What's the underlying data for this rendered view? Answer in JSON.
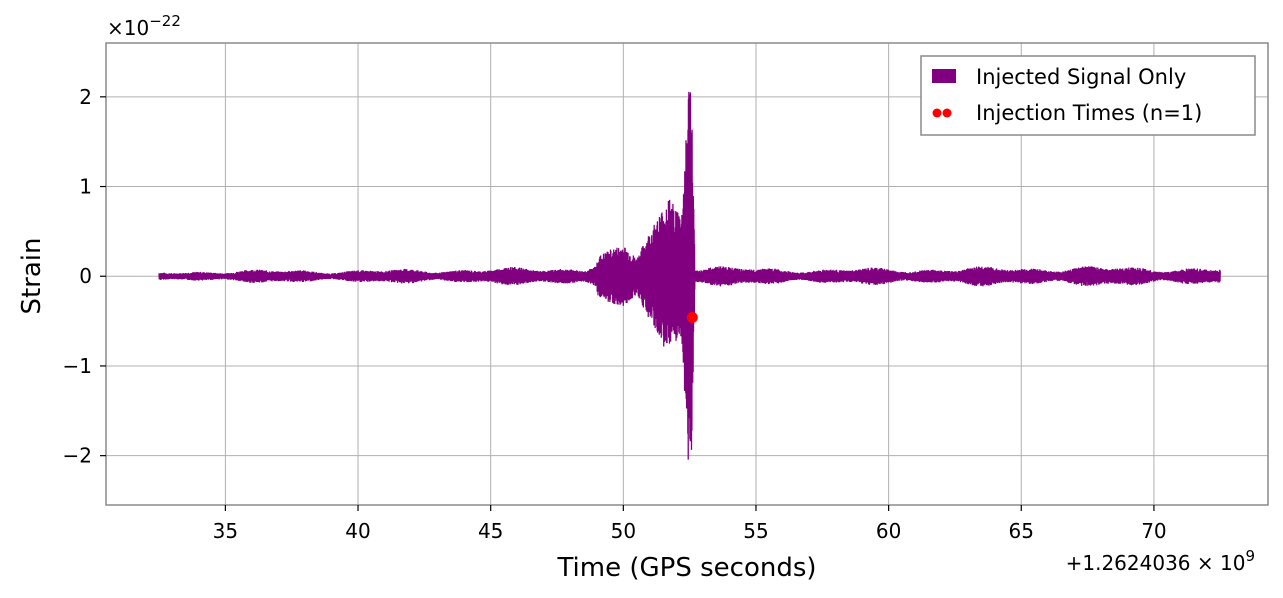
{
  "chart_data": {
    "type": "line",
    "xlabel": "Time (GPS seconds)",
    "ylabel": "Strain",
    "x_offset_label": "+1.2624036 × 10",
    "x_offset_exponent": "9",
    "y_scale_label": "×10",
    "y_scale_exponent": "−22",
    "xlim": [
      30.5,
      74.3
    ],
    "ylim": [
      -2.55,
      2.6
    ],
    "xticks": [
      35,
      40,
      45,
      50,
      55,
      60,
      65,
      70
    ],
    "xtick_labels": [
      "35",
      "40",
      "45",
      "50",
      "55",
      "60",
      "65",
      "70"
    ],
    "yticks": [
      -2,
      -1,
      0,
      1,
      2
    ],
    "ytick_labels": [
      "−2",
      "−1",
      "0",
      "1",
      "2"
    ],
    "grid": true,
    "legend_position": "top-right",
    "series": [
      {
        "name": "Injected Signal Only",
        "color": "#800080",
        "kind": "line",
        "x_range": [
          32.5,
          72.5
        ],
        "envelope_points": [
          {
            "x": 32.5,
            "amp": 0.05
          },
          {
            "x": 35,
            "amp": 0.08
          },
          {
            "x": 40,
            "amp": 0.08
          },
          {
            "x": 45,
            "amp": 0.1
          },
          {
            "x": 48.5,
            "amp": 0.12
          },
          {
            "x": 49.5,
            "amp": 0.3
          },
          {
            "x": 50.0,
            "amp": 0.35
          },
          {
            "x": 50.5,
            "amp": 0.2
          },
          {
            "x": 51.0,
            "amp": 0.5
          },
          {
            "x": 51.7,
            "amp": 0.88
          },
          {
            "x": 52.2,
            "amp": 0.7
          },
          {
            "x": 52.5,
            "amp": 2.37
          },
          {
            "x": 52.55,
            "amp": 2.3
          },
          {
            "x": 52.7,
            "amp": 0.15
          },
          {
            "x": 55,
            "amp": 0.1
          },
          {
            "x": 60,
            "amp": 0.1
          },
          {
            "x": 65,
            "amp": 0.12
          },
          {
            "x": 70,
            "amp": 0.12
          },
          {
            "x": 72.5,
            "amp": 0.1
          }
        ]
      },
      {
        "name": "Injection Times (n=1)",
        "color": "#ff0000",
        "kind": "scatter",
        "points": [
          {
            "x": 52.6,
            "y": -0.46
          }
        ]
      }
    ]
  }
}
